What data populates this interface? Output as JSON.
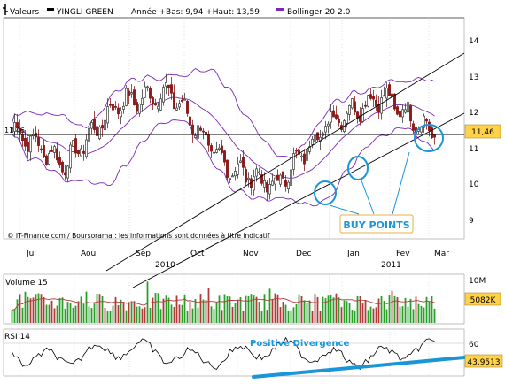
{
  "header": {
    "series_label": "Valeurs",
    "instrument": "YINGLI GREEN",
    "stats": "Année +Bas: 9,94 +Haut: 13,59",
    "indicator": "Bollinger 20 2.0"
  },
  "price_panel": {
    "y_ticks": [
      "14",
      "13",
      "12",
      "11",
      "10",
      "9"
    ],
    "left_marker": "11,46",
    "current_value": "11,46",
    "x_months": [
      "Jul",
      "Aou",
      "Sep",
      "Oct",
      "Nov",
      "Dec",
      "Jan",
      "Fev",
      "Mar"
    ],
    "years": [
      "2010",
      "2011"
    ],
    "copyright": "© IT-Finance.com / Boursorama : les informations sont données à titre indicatif",
    "annotation_buy": "BUY POINTS"
  },
  "volume_panel": {
    "title": "Volume 15",
    "y_top": "10M",
    "current_value": "5082K"
  },
  "rsi_panel": {
    "title": "RSI 14",
    "y_tick": "60",
    "current_value": "43,9513",
    "annotation": "Positive Divergence"
  },
  "colors": {
    "up_candle": "#3b3b3b",
    "down_candle": "#8b1a1a",
    "bollinger": "#7a28b8",
    "annotation": "#1a96d8",
    "value_box": "#ffd24a",
    "volume_bar": "#2aa02a",
    "volume_avg": "#b03a3a"
  },
  "chart_data": {
    "type": "line",
    "title": "",
    "xlabel": "",
    "ylabel": "",
    "ylim": [
      8.7,
      14.6
    ],
    "x": [
      "Jul",
      "Aou",
      "Sep",
      "Oct",
      "Nov",
      "Dec",
      "Jan",
      "Fev",
      "Mar"
    ],
    "series": [
      {
        "name": "YINGLI GREEN",
        "values": [
          11.6,
          10.6,
          12.3,
          12.6,
          10.6,
          10.0,
          11.8,
          12.5,
          11.46
        ]
      }
    ],
    "grid": false
  }
}
